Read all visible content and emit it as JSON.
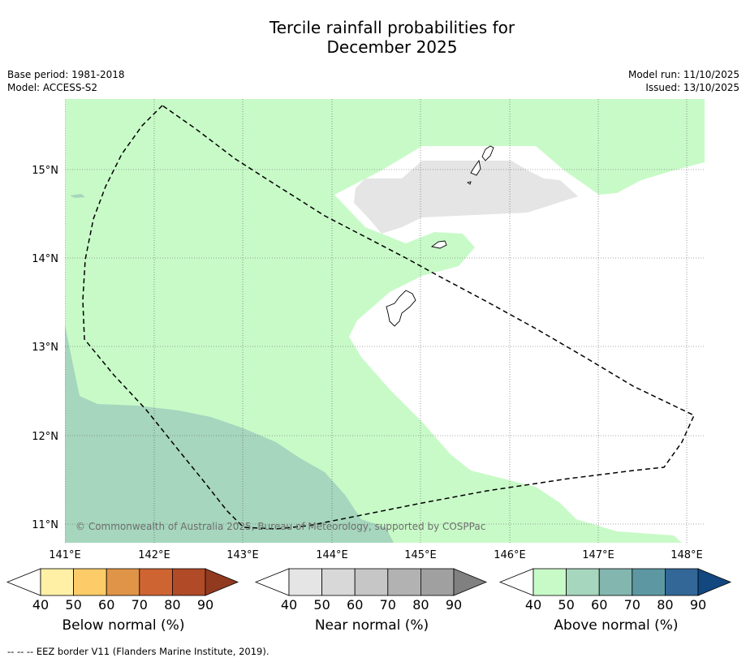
{
  "title_line1": "Tercile rainfall probabilities for",
  "title_line2": "December 2025",
  "meta_left": {
    "base_period": "Base period: 1981-2018",
    "model": "Model: ACCESS-S2"
  },
  "meta_right": {
    "model_run": "Model run: 11/10/2025",
    "issued": "Issued: 13/10/2025"
  },
  "map": {
    "lon_ticks": [
      "141°E",
      "142°E",
      "143°E",
      "144°E",
      "145°E",
      "146°E",
      "147°E",
      "148°E"
    ],
    "lat_ticks": [
      "15°N",
      "14°N",
      "13°N",
      "12°N",
      "11°N"
    ],
    "copyright": "© Commonwealth of Australia 2025, Bureau of Meteorology, supported by COSPPac",
    "colors": {
      "ocean_default": "#ffffff",
      "above_40_50": "#c8fac8",
      "above_50_60": "#a6d6bd",
      "near_40_50": "#e5e5e5",
      "land_outline": "#000000",
      "eez_line": "#000000"
    }
  },
  "colorbars": {
    "ticks": [
      "40",
      "50",
      "60",
      "70",
      "80",
      "90"
    ],
    "below": {
      "label": "Below normal (%)",
      "colors": [
        "#fff0a6",
        "#fdcc68",
        "#e09447",
        "#cf6433",
        "#b04a27",
        "#923a20"
      ]
    },
    "near": {
      "label": "Near normal (%)",
      "colors": [
        "#e5e5e5",
        "#d8d8d8",
        "#c6c6c6",
        "#b2b2b2",
        "#a0a0a0",
        "#808080"
      ]
    },
    "above": {
      "label": "Above normal (%)",
      "colors": [
        "#c8fac8",
        "#a6d6bd",
        "#83b6ae",
        "#5d97a2",
        "#336797",
        "#12477f"
      ]
    }
  },
  "footer": "--  --  -- EEZ border V11 (Flanders Marine Institute, 2019)."
}
